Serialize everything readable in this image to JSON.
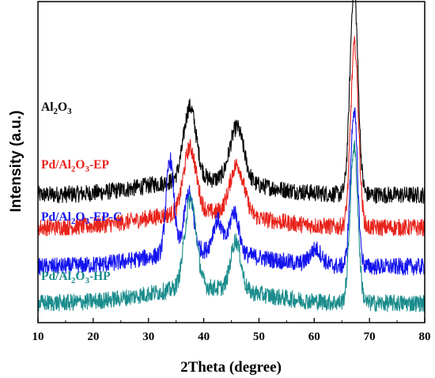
{
  "chart_data": {
    "type": "line",
    "xlabel": "2Theta (degree)",
    "ylabel": "Intensity (a.u.)",
    "xlim": [
      10,
      80
    ],
    "x_ticks": [
      "10",
      "20",
      "30",
      "40",
      "50",
      "60",
      "70",
      "80"
    ],
    "y_ticks_labeled": false,
    "grid": false,
    "legend": "inline labels to the left of each trace",
    "series": [
      {
        "name": "Al2O3",
        "label_main": "Al",
        "label_sub1": "2",
        "label_mid": "O",
        "label_sub2": "3",
        "label_suffix": "",
        "color": "#000000",
        "baseline": 0.93,
        "peaks": [
          {
            "x": 37.5,
            "height": 0.56,
            "width": 1.6
          },
          {
            "x": 46.0,
            "height": 0.42,
            "width": 1.8
          },
          {
            "x": 67.2,
            "height": 1.6,
            "width": 1.0
          }
        ]
      },
      {
        "name": "Pd/Al2O3-EP",
        "label_main": "Pd/Al",
        "label_sub1": "2",
        "label_mid": "O",
        "label_sub2": "3",
        "label_suffix": "-EP",
        "color": "#e8231b",
        "baseline": 0.68,
        "peaks": [
          {
            "x": 37.5,
            "height": 0.5,
            "width": 1.6
          },
          {
            "x": 46.0,
            "height": 0.38,
            "width": 1.8
          },
          {
            "x": 67.3,
            "height": 1.4,
            "width": 1.0
          }
        ]
      },
      {
        "name": "Pd/Al2O3-EP-C",
        "label_main": "Pd/Al",
        "label_sub1": "2",
        "label_mid": "O",
        "label_sub2": "3",
        "label_suffix": "-EP-C",
        "color": "#1414ee",
        "baseline": 0.38,
        "peaks": [
          {
            "x": 33.9,
            "height": 0.72,
            "width": 1.0
          },
          {
            "x": 37.3,
            "height": 0.45,
            "width": 1.2
          },
          {
            "x": 42.5,
            "height": 0.24,
            "width": 1.2
          },
          {
            "x": 45.5,
            "height": 0.32,
            "width": 1.2
          },
          {
            "x": 60.3,
            "height": 0.12,
            "width": 1.5
          },
          {
            "x": 67.2,
            "height": 1.2,
            "width": 0.9
          }
        ]
      },
      {
        "name": "Pd/Al2O3-HP",
        "label_main": "Pd/Al",
        "label_sub1": "2",
        "label_mid": "O",
        "label_sub2": "3",
        "label_suffix": "-HP",
        "color": "#1b8c8c",
        "baseline": 0.1,
        "peaks": [
          {
            "x": 37.6,
            "height": 0.68,
            "width": 1.5
          },
          {
            "x": 45.8,
            "height": 0.38,
            "width": 1.3
          },
          {
            "x": 67.2,
            "height": 1.2,
            "width": 1.0
          }
        ]
      }
    ]
  }
}
